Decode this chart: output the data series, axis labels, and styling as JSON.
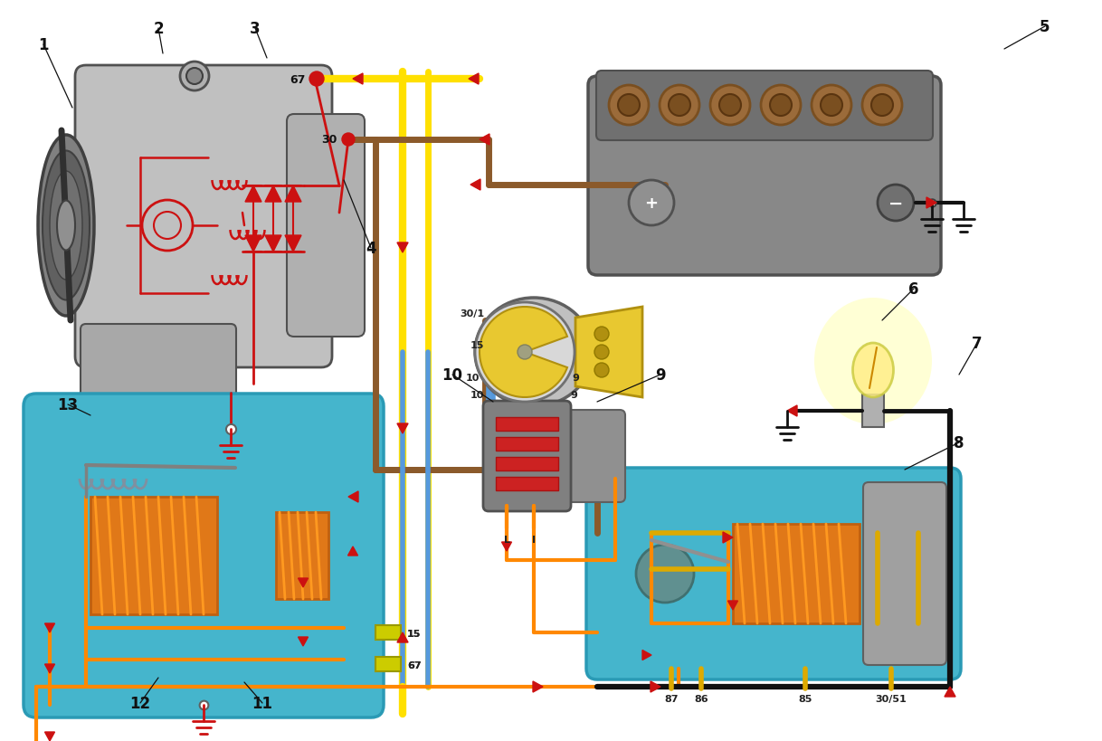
{
  "bg_color": "#ffffff",
  "wire_red": "#cc1111",
  "wire_brown": "#8B5A2B",
  "wire_yellow": "#FFE000",
  "wire_blue": "#5599dd",
  "wire_orange": "#FF8800",
  "wire_black": "#111111",
  "wire_gray": "#888888",
  "wire_yellow2": "#dddd00",
  "relay_bg": "#45b5cc",
  "relay_border": "#2a9ab5",
  "coil_fill": "#e07818",
  "coil_border": "#c06010",
  "alt_body": "#c0c0c0",
  "alt_dark": "#606060",
  "bat_body": "#808080",
  "bat_dark": "#606060",
  "key_yellow": "#e8c830",
  "key_border": "#b09010",
  "lamp_yellow": "#FFEE88",
  "diode_red": "#cc1111"
}
